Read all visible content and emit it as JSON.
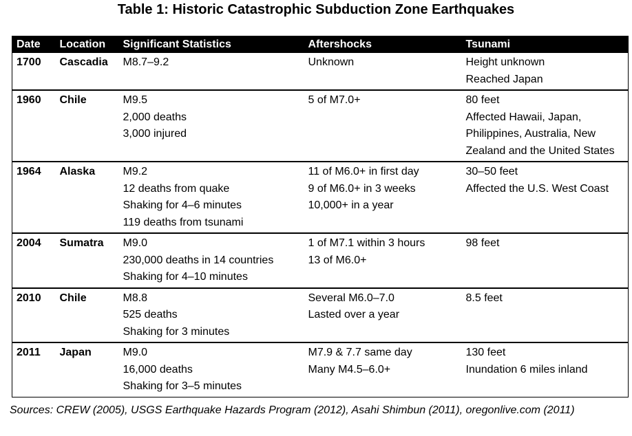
{
  "title": "Table 1: Historic Catastrophic Subduction Zone Earthquakes",
  "table": {
    "columns": [
      "Date",
      "Location",
      "Significant Statistics",
      "Aftershocks",
      "Tsunami"
    ],
    "rows": [
      {
        "date": "1700",
        "location": "Cascadia",
        "statistics": [
          "M8.7–9.2"
        ],
        "aftershocks": [
          "Unknown"
        ],
        "tsunami": [
          "Height unknown",
          "Reached Japan"
        ]
      },
      {
        "date": "1960",
        "location": "Chile",
        "statistics": [
          "M9.5",
          "2,000 deaths",
          "3,000 injured"
        ],
        "aftershocks": [
          "5 of M7.0+"
        ],
        "tsunami": [
          "80 feet",
          "Affected Hawaii, Japan, Philippines, Australia, New Zealand and the United States"
        ]
      },
      {
        "date": "1964",
        "location": "Alaska",
        "statistics": [
          "M9.2",
          "12 deaths from quake",
          "Shaking for 4–6 minutes",
          "119 deaths from tsunami"
        ],
        "aftershocks": [
          "11 of M6.0+ in first day",
          "9 of M6.0+ in 3 weeks",
          "10,000+ in a year"
        ],
        "tsunami": [
          "30–50 feet",
          "Affected the U.S. West Coast"
        ]
      },
      {
        "date": "2004",
        "location": "Sumatra",
        "statistics": [
          "M9.0",
          "230,000 deaths in 14 countries",
          "Shaking for 4–10 minutes"
        ],
        "aftershocks": [
          "1 of M7.1 within 3 hours",
          "13 of M6.0+"
        ],
        "tsunami": [
          "98 feet"
        ]
      },
      {
        "date": "2010",
        "location": "Chile",
        "statistics": [
          "M8.8",
          "525 deaths",
          "Shaking for 3 minutes"
        ],
        "aftershocks": [
          "Several M6.0–7.0",
          "Lasted over a year"
        ],
        "tsunami": [
          "8.5 feet"
        ]
      },
      {
        "date": "2011",
        "location": "Japan",
        "statistics": [
          "M9.0",
          "16,000 deaths",
          "Shaking for 3–5 minutes"
        ],
        "aftershocks": [
          "M7.9 & 7.7 same day",
          "Many M4.5–6.0+"
        ],
        "tsunami": [
          "130 feet",
          "Inundation 6 miles inland"
        ]
      }
    ]
  },
  "sources": "Sources: CREW (2005), USGS Earthquake Hazards Program (2012), Asahi Shimbun (2011), oregonlive.com (2011)"
}
